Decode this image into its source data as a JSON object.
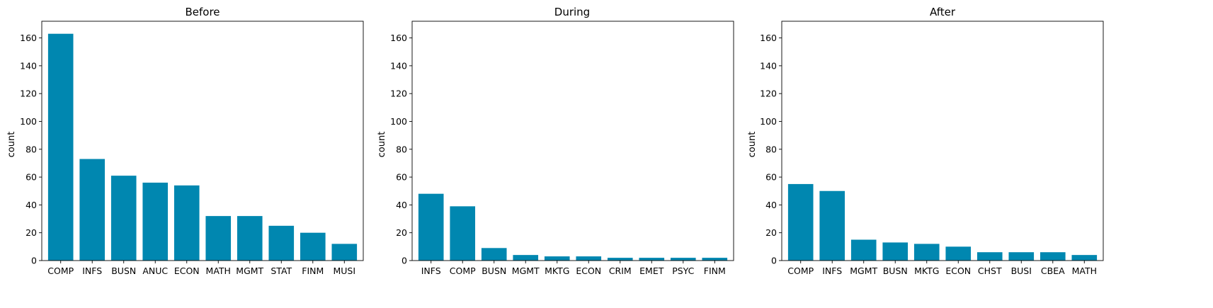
{
  "chart_data": [
    {
      "type": "bar",
      "title": "Before",
      "xlabel": "",
      "ylabel": "count",
      "ylim": [
        0,
        172
      ],
      "yticks": [
        0,
        20,
        40,
        60,
        80,
        100,
        120,
        140,
        160
      ],
      "categories": [
        "COMP",
        "INFS",
        "BUSN",
        "ANUC",
        "ECON",
        "MATH",
        "MGMT",
        "STAT",
        "FINM",
        "MUSI"
      ],
      "values": [
        163,
        73,
        61,
        56,
        54,
        32,
        32,
        25,
        20,
        12
      ],
      "bar_color": "#0087b0",
      "grid": false
    },
    {
      "type": "bar",
      "title": "During",
      "xlabel": "",
      "ylabel": "count",
      "ylim": [
        0,
        172
      ],
      "yticks": [
        0,
        20,
        40,
        60,
        80,
        100,
        120,
        140,
        160
      ],
      "categories": [
        "INFS",
        "COMP",
        "BUSN",
        "MGMT",
        "MKTG",
        "ECON",
        "CRIM",
        "EMET",
        "PSYC",
        "FINM"
      ],
      "values": [
        48,
        39,
        9,
        4,
        3,
        3,
        2,
        2,
        2,
        2
      ],
      "bar_color": "#0087b0",
      "grid": false
    },
    {
      "type": "bar",
      "title": "After",
      "xlabel": "",
      "ylabel": "count",
      "ylim": [
        0,
        172
      ],
      "yticks": [
        0,
        20,
        40,
        60,
        80,
        100,
        120,
        140,
        160
      ],
      "categories": [
        "COMP",
        "INFS",
        "MGMT",
        "BUSN",
        "MKTG",
        "ECON",
        "CHST",
        "BUSI",
        "CBEA",
        "MATH"
      ],
      "values": [
        55,
        50,
        15,
        13,
        12,
        10,
        6,
        6,
        6,
        4
      ],
      "bar_color": "#0087b0",
      "grid": false
    }
  ]
}
